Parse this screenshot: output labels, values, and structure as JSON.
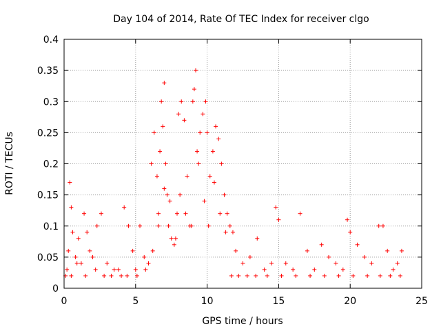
{
  "chart_data": {
    "type": "scatter",
    "title": "Day 104 of 2014, Rate Of TEC Index for receiver clgo",
    "xlabel": "GPS time / hours",
    "ylabel": "ROTI / TECUs",
    "xlim": [
      0,
      25
    ],
    "ylim": [
      0,
      0.4
    ],
    "xticks": [
      {
        "value": 0,
        "label": "0"
      },
      {
        "value": 5,
        "label": "5"
      },
      {
        "value": 10,
        "label": "10"
      },
      {
        "value": 15,
        "label": "15"
      },
      {
        "value": 20,
        "label": "20"
      },
      {
        "value": 25,
        "label": "25"
      }
    ],
    "yticks": [
      {
        "value": 0,
        "label": "0"
      },
      {
        "value": 0.05,
        "label": "0.05"
      },
      {
        "value": 0.1,
        "label": "0.1"
      },
      {
        "value": 0.15,
        "label": "0.15"
      },
      {
        "value": 0.2,
        "label": "0.2"
      },
      {
        "value": 0.25,
        "label": "0.25"
      },
      {
        "value": 0.3,
        "label": "0.3"
      },
      {
        "value": 0.35,
        "label": "0.35"
      },
      {
        "value": 0.4,
        "label": "0.4"
      }
    ],
    "grid": true,
    "marker": "+",
    "marker_color": "#ff0000",
    "series": [
      {
        "name": "ROTI",
        "x": [
          0.1,
          0.3,
          0.4,
          0.5,
          0.6,
          0.8,
          1.0,
          1.2,
          1.4,
          1.6,
          1.8,
          2.0,
          2.3,
          2.6,
          3.0,
          3.5,
          4.0,
          4.2,
          4.5,
          4.8,
          5.0,
          5.3,
          5.6,
          5.9,
          6.1,
          6.3,
          6.5,
          6.6,
          6.7,
          6.8,
          6.9,
          7.0,
          7.1,
          7.2,
          7.3,
          7.5,
          7.7,
          7.9,
          8.0,
          8.2,
          8.4,
          8.6,
          8.8,
          9.0,
          9.1,
          9.2,
          9.3,
          9.5,
          9.7,
          9.9,
          10.0,
          10.2,
          10.4,
          10.6,
          10.8,
          11.0,
          11.2,
          11.4,
          11.6,
          11.8,
          12.0,
          12.5,
          13.0,
          13.5,
          14.0,
          14.5,
          14.8,
          15.0,
          15.5,
          16.0,
          16.5,
          17.0,
          17.5,
          18.0,
          18.5,
          19.0,
          19.5,
          19.8,
          20.0,
          20.5,
          21.0,
          21.5,
          22.0,
          22.3,
          22.6,
          23.0,
          23.3,
          23.6,
          0.2,
          0.5,
          0.9,
          1.5,
          2.2,
          2.8,
          3.3,
          3.8,
          4.4,
          5.1,
          5.7,
          6.2,
          6.6,
          7.0,
          7.4,
          7.8,
          8.1,
          8.5,
          8.9,
          9.4,
          9.8,
          10.1,
          10.5,
          10.9,
          11.3,
          11.7,
          12.2,
          12.8,
          13.4,
          14.2,
          15.2,
          16.2,
          17.2,
          18.2,
          19.2,
          20.2,
          21.2,
          22.1,
          22.8,
          23.5
        ],
        "y": [
          0.02,
          0.06,
          0.17,
          0.13,
          0.09,
          0.05,
          0.08,
          0.04,
          0.12,
          0.09,
          0.06,
          0.05,
          0.1,
          0.12,
          0.04,
          0.03,
          0.02,
          0.13,
          0.1,
          0.06,
          0.03,
          0.1,
          0.05,
          0.04,
          0.2,
          0.25,
          0.18,
          0.12,
          0.22,
          0.3,
          0.26,
          0.33,
          0.2,
          0.15,
          0.1,
          0.08,
          0.07,
          0.12,
          0.28,
          0.3,
          0.27,
          0.18,
          0.1,
          0.3,
          0.32,
          0.35,
          0.22,
          0.25,
          0.28,
          0.3,
          0.25,
          0.18,
          0.22,
          0.26,
          0.24,
          0.2,
          0.15,
          0.12,
          0.1,
          0.09,
          0.06,
          0.04,
          0.05,
          0.08,
          0.03,
          0.04,
          0.13,
          0.11,
          0.04,
          0.03,
          0.12,
          0.06,
          0.03,
          0.07,
          0.05,
          0.04,
          0.03,
          0.11,
          0.09,
          0.07,
          0.05,
          0.04,
          0.1,
          0.1,
          0.06,
          0.03,
          0.04,
          0.06,
          0.03,
          0.02,
          0.04,
          0.02,
          0.03,
          0.02,
          0.02,
          0.03,
          0.02,
          0.02,
          0.03,
          0.06,
          0.1,
          0.16,
          0.14,
          0.08,
          0.15,
          0.12,
          0.1,
          0.2,
          0.14,
          0.1,
          0.17,
          0.12,
          0.09,
          0.02,
          0.02,
          0.02,
          0.02,
          0.02,
          0.02,
          0.02,
          0.02,
          0.02,
          0.02,
          0.02,
          0.02,
          0.02,
          0.02,
          0.02
        ]
      }
    ]
  }
}
